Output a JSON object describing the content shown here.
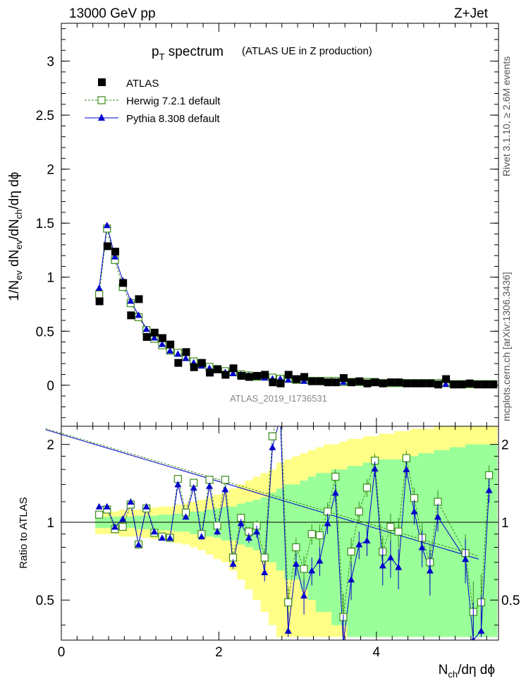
{
  "header": {
    "left": "13000 GeV pp",
    "right": "Z+Jet"
  },
  "side": {
    "rivet": "Rivet 3.1.10, ≥ 2.6M events",
    "mcplots": "mcplots.cern.ch [arXiv:1306.3436]"
  },
  "watermark": "ATLAS_2019_I1736531",
  "colors": {
    "data": "#000000",
    "herwig": "#3a8a1a",
    "pythia": "#0000cc",
    "band_green": "#99ff99",
    "band_yellow": "#ffff88"
  },
  "chart_data": [
    {
      "type": "scatter",
      "panel": "main",
      "title_main": "p",
      "title_sub": "T",
      "title_rest": " spectrum",
      "subtitle": "(ATLAS UE in Z production)",
      "ylabel": "1/N_ev dN_ev/dN_ch/dη dϕ",
      "xlim": [
        0,
        5.55
      ],
      "ylim": [
        -0.38,
        3.35
      ],
      "yticks": [
        0,
        0.5,
        1,
        1.5,
        2,
        2.5,
        3
      ],
      "ytick_labels": [
        "0",
        "0.5",
        "1",
        "1.5",
        "2",
        "2.5",
        "3"
      ],
      "legend_position": "top-left",
      "series": [
        {
          "name": "ATLAS",
          "marker": "filled-square",
          "x": [
            0.48,
            0.58,
            0.68,
            0.78,
            0.88,
            0.98,
            1.08,
            1.18,
            1.28,
            1.38,
            1.48,
            1.58,
            1.68,
            1.78,
            1.88,
            1.98,
            2.08,
            2.18,
            2.28,
            2.38,
            2.48,
            2.58,
            2.68,
            2.78,
            2.88,
            2.98,
            3.08,
            3.18,
            3.28,
            3.38,
            3.48,
            3.58,
            3.68,
            3.78,
            3.88,
            3.98,
            4.08,
            4.18,
            4.28,
            4.38,
            4.48,
            4.58,
            4.68,
            4.78,
            4.88,
            4.98,
            5.08,
            5.18,
            5.28,
            5.38,
            5.48
          ],
          "y": [
            0.78,
            1.29,
            1.24,
            0.95,
            0.65,
            0.8,
            0.45,
            0.49,
            0.44,
            0.38,
            0.21,
            0.31,
            0.17,
            0.21,
            0.12,
            0.15,
            0.1,
            0.16,
            0.09,
            0.08,
            0.09,
            0.1,
            0.03,
            0.02,
            0.1,
            0.06,
            0.08,
            0.04,
            0.04,
            0.03,
            0.03,
            0.07,
            0.03,
            0.04,
            0.02,
            0.03,
            0.02,
            0.03,
            0.03,
            0.02,
            0.02,
            0.02,
            0.02,
            0.01,
            0.06,
            0.01,
            0.01,
            0.02,
            0.01,
            0.01,
            0.01
          ]
        },
        {
          "name": "Herwig 7.2.1 default",
          "marker": "open-square",
          "line": "dashed",
          "x": [
            0.48,
            0.58,
            0.68,
            0.78,
            0.88,
            0.98,
            1.08,
            1.18,
            1.28,
            1.38,
            1.48,
            1.58,
            1.68,
            1.78,
            1.88,
            1.98,
            2.08,
            2.18,
            2.28,
            2.38,
            2.48,
            2.58,
            2.68,
            2.78,
            2.88,
            2.98,
            3.08,
            3.18,
            3.28,
            3.38,
            3.48,
            3.58,
            3.68,
            3.78,
            3.88,
            3.98,
            4.08,
            4.18,
            4.28,
            4.38,
            4.48,
            4.58,
            4.68,
            4.78,
            4.88,
            4.98,
            5.08,
            5.18,
            5.28,
            5.38,
            5.48
          ],
          "y": [
            0.84,
            1.45,
            1.16,
            0.91,
            0.76,
            0.63,
            0.51,
            0.43,
            0.37,
            0.32,
            0.3,
            0.26,
            0.22,
            0.2,
            0.17,
            0.15,
            0.13,
            0.12,
            0.1,
            0.09,
            0.08,
            0.08,
            0.07,
            0.06,
            0.06,
            0.05,
            0.05,
            0.04,
            0.04,
            0.04,
            0.04,
            0.03,
            0.03,
            0.03,
            0.03,
            0.03,
            0.02,
            0.02,
            0.02,
            0.02,
            0.02,
            0.02,
            0.02,
            0.02,
            0.02,
            0.01,
            0.01,
            0.01,
            0.01,
            0.01,
            0.01
          ]
        },
        {
          "name": "Pythia 8.308 default",
          "marker": "filled-triangle",
          "line": "solid",
          "x": [
            0.48,
            0.58,
            0.68,
            0.78,
            0.88,
            0.98,
            1.08,
            1.18,
            1.28,
            1.38,
            1.48,
            1.58,
            1.68,
            1.78,
            1.88,
            1.98,
            2.08,
            2.18,
            2.28,
            2.38,
            2.48,
            2.58,
            2.68,
            2.78,
            2.88,
            2.98,
            3.08,
            3.18,
            3.28,
            3.38,
            3.48,
            3.58,
            3.68,
            3.78,
            3.88,
            3.98,
            4.08,
            4.18,
            4.28,
            4.38,
            4.48,
            4.58,
            4.68,
            4.78,
            4.88,
            4.98,
            5.08,
            5.18,
            5.28,
            5.38,
            5.48
          ],
          "y": [
            0.9,
            1.48,
            1.19,
            0.97,
            0.78,
            0.65,
            0.52,
            0.44,
            0.38,
            0.32,
            0.29,
            0.25,
            0.21,
            0.18,
            0.16,
            0.14,
            0.12,
            0.11,
            0.1,
            0.09,
            0.08,
            0.07,
            0.06,
            0.06,
            0.05,
            0.05,
            0.04,
            0.04,
            0.04,
            0.03,
            0.03,
            0.03,
            0.03,
            0.03,
            0.02,
            0.02,
            0.02,
            0.02,
            0.02,
            0.02,
            0.02,
            0.02,
            0.02,
            0.01,
            0.01,
            0.01,
            0.01,
            0.01,
            0.01,
            0.01,
            0.01
          ]
        }
      ]
    },
    {
      "type": "line",
      "panel": "ratio",
      "ylabel": "Ratio to ATLAS",
      "xlabel": "N_ch/dη dϕ",
      "xlim": [
        0,
        5.55
      ],
      "ylim": [
        0.35,
        2.35
      ],
      "xticks": [
        0,
        2,
        4
      ],
      "xtick_labels": [
        "0",
        "2",
        "4"
      ],
      "yticks": [
        0.5,
        1,
        2
      ],
      "ytick_labels": [
        "0.5",
        "1",
        "2"
      ],
      "band_x_edges": [
        0.43,
        0.53,
        0.63,
        0.73,
        0.83,
        0.93,
        1.03,
        1.13,
        1.23,
        1.33,
        1.43,
        1.53,
        1.63,
        1.73,
        1.83,
        1.93,
        2.03,
        2.13,
        2.23,
        2.33,
        2.43,
        2.53,
        2.63,
        2.73,
        2.83,
        2.93,
        3.03,
        3.13,
        3.23,
        3.33,
        3.43,
        3.53,
        3.63,
        3.73,
        3.83,
        3.93,
        4.03,
        4.13,
        4.23,
        4.33,
        4.43,
        4.53,
        4.63,
        4.73,
        4.83,
        4.93,
        5.03,
        5.13,
        5.23,
        5.33,
        5.43,
        5.53
      ],
      "band_green_half": [
        0.05,
        0.05,
        0.05,
        0.05,
        0.05,
        0.06,
        0.06,
        0.06,
        0.07,
        0.07,
        0.08,
        0.08,
        0.1,
        0.1,
        0.12,
        0.13,
        0.15,
        0.15,
        0.18,
        0.2,
        0.22,
        0.25,
        0.3,
        0.35,
        0.4,
        0.4,
        0.45,
        0.5,
        0.55,
        0.55,
        0.6,
        0.6,
        0.65,
        0.65,
        0.7,
        0.7,
        0.75,
        0.75,
        0.75,
        0.8,
        0.8,
        0.85,
        0.85,
        0.9,
        0.9,
        0.95,
        0.95,
        1.0,
        1.0,
        1.0,
        1.0
      ],
      "band_yellow_half": [
        0.1,
        0.1,
        0.1,
        0.12,
        0.12,
        0.12,
        0.13,
        0.14,
        0.15,
        0.15,
        0.17,
        0.18,
        0.2,
        0.22,
        0.25,
        0.28,
        0.3,
        0.35,
        0.4,
        0.45,
        0.5,
        0.55,
        0.6,
        0.7,
        0.75,
        0.8,
        0.85,
        0.9,
        0.95,
        1.0,
        1.0,
        1.05,
        1.1,
        1.1,
        1.15,
        1.15,
        1.2,
        1.2,
        1.25,
        1.25,
        1.3,
        1.3,
        1.3,
        1.35,
        1.35,
        1.4,
        1.4,
        1.4,
        1.4,
        1.4,
        1.4
      ],
      "series": [
        {
          "name": "Herwig 7.2.1 default",
          "x": [
            0.48,
            0.58,
            0.68,
            0.78,
            0.88,
            0.98,
            1.08,
            1.18,
            1.28,
            1.38,
            1.48,
            1.58,
            1.68,
            1.78,
            1.88,
            1.98,
            2.08,
            2.18,
            2.28,
            2.38,
            2.48,
            2.58,
            2.68,
            2.78,
            2.88,
            2.98,
            3.08,
            3.18,
            3.28,
            3.38,
            3.48,
            3.58,
            3.68,
            3.78,
            3.88,
            3.98,
            4.08,
            4.18,
            4.28,
            4.38,
            4.48,
            4.58,
            4.68,
            4.78,
            5.13,
            5.23,
            5.33,
            5.43
          ],
          "y": [
            1.07,
            1.12,
            0.94,
            0.96,
            1.17,
            0.82,
            1.13,
            0.91,
            0.88,
            0.87,
            1.47,
            1.09,
            1.42,
            0.9,
            1.46,
            0.97,
            1.46,
            0.73,
            1.04,
            0.92,
            0.97,
            0.73,
            2.15,
            2.95,
            0.49,
            0.8,
            0.66,
            0.9,
            0.89,
            1.1,
            1.5,
            0.43,
            0.77,
            1.1,
            1.36,
            1.73,
            0.77,
            0.96,
            0.92,
            1.77,
            1.24,
            0.87,
            0.7,
            1.2,
            0.76,
            0.45,
            0.49,
            1.52
          ],
          "err": [
            0.01,
            0.01,
            0.01,
            0.01,
            0.01,
            0.01,
            0.01,
            0.01,
            0.01,
            0.01,
            0.02,
            0.02,
            0.02,
            0.02,
            0.03,
            0.03,
            0.03,
            0.03,
            0.04,
            0.04,
            0.05,
            0.05,
            0.06,
            0.06,
            0.07,
            0.07,
            0.08,
            0.08,
            0.09,
            0.09,
            0.1,
            0.1,
            0.1,
            0.1,
            0.11,
            0.11,
            0.11,
            0.12,
            0.12,
            0.12,
            0.12,
            0.13,
            0.13,
            0.13,
            0.14,
            0.14,
            0.14,
            0.14
          ]
        },
        {
          "name": "Pythia 8.308 default",
          "x": [
            0.48,
            0.58,
            0.68,
            0.78,
            0.88,
            0.98,
            1.08,
            1.18,
            1.28,
            1.38,
            1.48,
            1.58,
            1.68,
            1.78,
            1.88,
            1.98,
            2.08,
            2.18,
            2.28,
            2.38,
            2.48,
            2.58,
            2.68,
            2.78,
            2.88,
            2.98,
            3.08,
            3.18,
            3.28,
            3.38,
            3.48,
            3.58,
            3.68,
            3.78,
            3.88,
            3.98,
            4.08,
            4.18,
            4.28,
            4.38,
            4.48,
            4.58,
            4.68,
            4.78,
            5.13,
            5.23,
            5.33,
            5.43
          ],
          "y": [
            1.15,
            1.15,
            0.96,
            1.03,
            1.2,
            0.82,
            1.15,
            0.92,
            0.87,
            0.87,
            1.4,
            1.05,
            1.36,
            0.88,
            1.38,
            0.92,
            1.34,
            0.69,
            0.99,
            0.87,
            0.92,
            0.64,
            1.95,
            2.55,
            0.38,
            0.69,
            0.52,
            0.65,
            0.71,
            0.99,
            1.3,
            0.34,
            0.6,
            0.82,
            0.85,
            1.61,
            0.68,
            0.73,
            0.67,
            1.6,
            1.1,
            0.8,
            0.65,
            1.05,
            0.72,
            0.35,
            0.38,
            1.33
          ],
          "err": [
            0.01,
            0.01,
            0.01,
            0.01,
            0.01,
            0.01,
            0.01,
            0.01,
            0.01,
            0.01,
            0.02,
            0.02,
            0.02,
            0.02,
            0.03,
            0.03,
            0.03,
            0.03,
            0.04,
            0.04,
            0.05,
            0.05,
            0.06,
            0.06,
            0.07,
            0.07,
            0.08,
            0.08,
            0.09,
            0.09,
            0.1,
            0.1,
            0.1,
            0.1,
            0.11,
            0.11,
            0.11,
            0.12,
            0.12,
            0.12,
            0.12,
            0.13,
            0.13,
            0.13,
            0.14,
            0.14,
            0.14,
            0.14
          ]
        }
      ],
      "overflow_lines": [
        {
          "name": "Pythia 8.308 default",
          "x": [
            -0.2,
            5.3
          ],
          "y": [
            2.28,
            0.72
          ]
        },
        {
          "name": "Herwig 7.2.1 default",
          "x": [
            -0.2,
            5.3
          ],
          "y": [
            2.3,
            0.74
          ]
        }
      ]
    }
  ]
}
